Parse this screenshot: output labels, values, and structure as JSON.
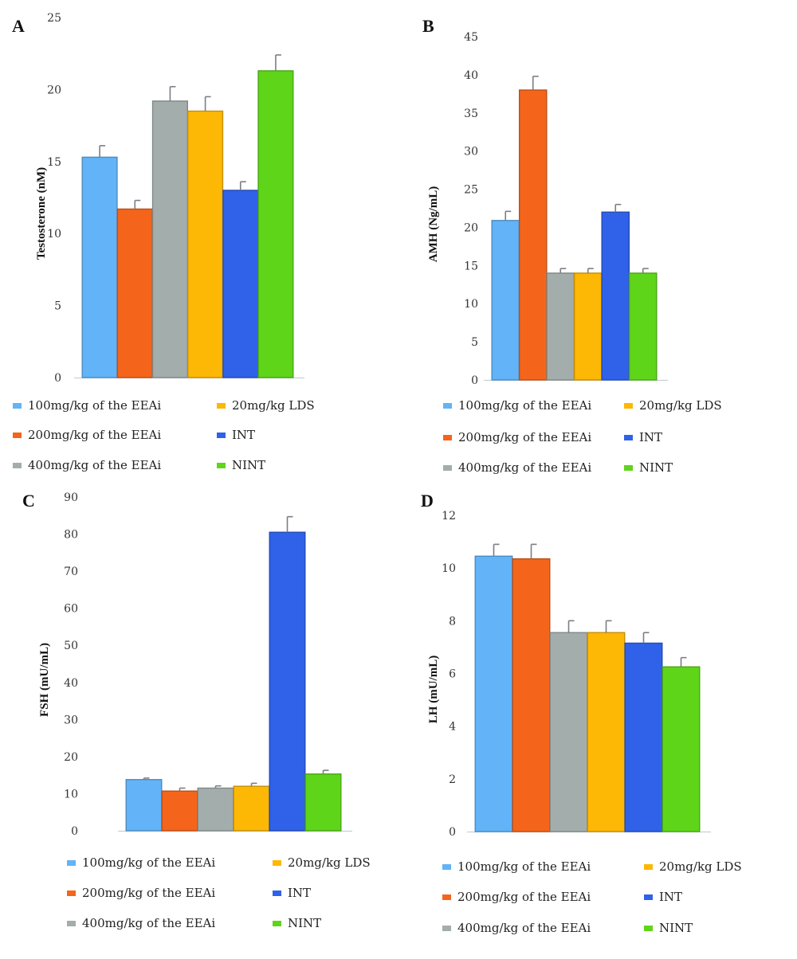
{
  "legend": [
    {
      "label": "100mg/kg of the EEAi",
      "color": "#62b3f7"
    },
    {
      "label": "200mg/kg of the EEAi",
      "color": "#f4651b"
    },
    {
      "label": "400mg/kg of the EEAi",
      "color": "#a3aeac"
    },
    {
      "label": "20mg/kg LDS",
      "color": "#fdb705"
    },
    {
      "label": "INT",
      "color": "#2f62e8"
    },
    {
      "label": "NINT",
      "color": "#5fd51a"
    }
  ],
  "chart_data": [
    {
      "panel": "A",
      "type": "bar",
      "categories": [
        "100mg/kg of the EEAi",
        "200mg/kg of the EEAi",
        "400mg/kg of the EEAi",
        "20mg/kg LDS",
        "INT",
        "NINT"
      ],
      "values": [
        15.3,
        11.7,
        19.2,
        18.5,
        13.0,
        21.3
      ],
      "errors": [
        0.8,
        0.6,
        1.0,
        1.0,
        0.6,
        1.1
      ],
      "ylabel": "Testosterone (nM)",
      "yticks": [
        "0",
        "5",
        "10",
        "15",
        "20",
        "25"
      ],
      "ylim": [
        0,
        25
      ]
    },
    {
      "panel": "B",
      "type": "bar",
      "categories": [
        "100mg/kg of the EEAi",
        "200mg/kg of the EEAi",
        "400mg/kg of the EEAi",
        "20mg/kg LDS",
        "INT",
        "NINT"
      ],
      "values": [
        20.9,
        38.0,
        14.0,
        14.0,
        22.0,
        14.0
      ],
      "errors": [
        1.2,
        1.8,
        0.6,
        0.6,
        1.0,
        0.6
      ],
      "ylabel": "AMH (Ng/mL)",
      "yticks": [
        "0",
        "5",
        "10",
        "15",
        "20",
        "25",
        "30",
        "35",
        "40",
        "45"
      ],
      "ylim": [
        0,
        45
      ]
    },
    {
      "panel": "C",
      "type": "bar",
      "categories": [
        "100mg/kg of the EEAi",
        "200mg/kg of the EEAi",
        "400mg/kg of the EEAi",
        "20mg/kg LDS",
        "INT",
        "NINT"
      ],
      "values": [
        13.8,
        10.7,
        11.5,
        12.0,
        80.5,
        15.3
      ],
      "errors": [
        0.4,
        0.8,
        0.6,
        0.8,
        4.2,
        1.0
      ],
      "ylabel": "FSH (mU/mL)",
      "yticks": [
        "0",
        "10",
        "20",
        "30",
        "40",
        "50",
        "60",
        "70",
        "80",
        "90"
      ],
      "ylim": [
        0,
        90
      ]
    },
    {
      "panel": "D",
      "type": "bar",
      "categories": [
        "100mg/kg of the EEAi",
        "200mg/kg of the EEAi",
        "400mg/kg of the EEAi",
        "20mg/kg LDS",
        "INT",
        "NINT"
      ],
      "values": [
        10.45,
        10.35,
        7.55,
        7.55,
        7.15,
        6.25
      ],
      "errors": [
        0.45,
        0.55,
        0.45,
        0.45,
        0.4,
        0.35
      ],
      "ylabel": "LH (mU/mL)",
      "yticks": [
        "0",
        "2",
        "4",
        "6",
        "8",
        "10",
        "12"
      ],
      "ylim": [
        0,
        12
      ]
    }
  ]
}
